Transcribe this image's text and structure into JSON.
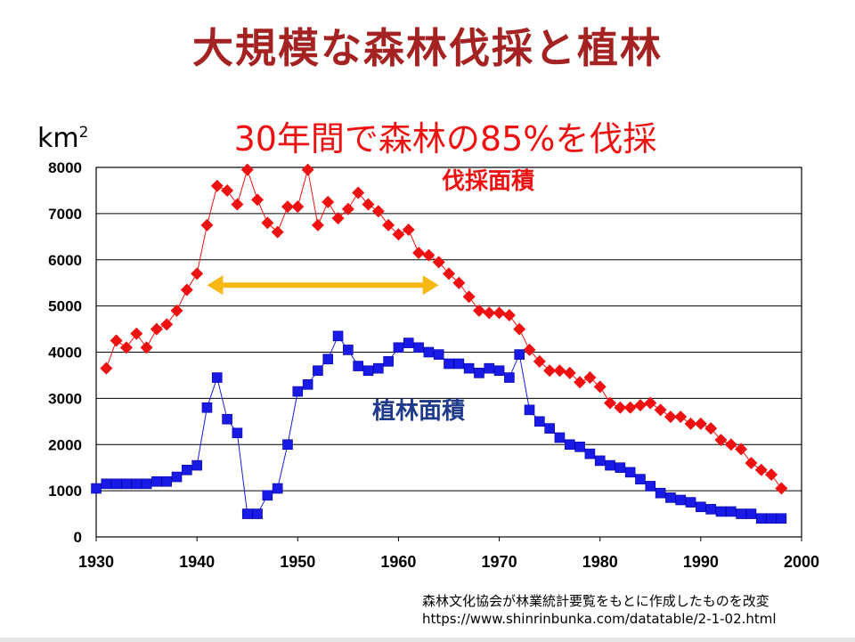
{
  "title": "大規模な森林伐採と植林",
  "subtitle": "30年間で森林の85%を伐採",
  "unit_base": "km",
  "unit_sup": "2",
  "source_line1": "森林文化協会が林業統計要覧をもとに作成したものを改変",
  "source_line2": "https://www.shinrinbunka.com/datatable/2-1-02.html",
  "colors": {
    "title": "#a52222",
    "subtitle": "#ee1111",
    "felling": "#ee1111",
    "planting": "#1a1ae6",
    "planting_label": "#1f3a8a",
    "arrow": "#f7b814"
  },
  "chart_data": {
    "type": "line",
    "xlim": [
      1930,
      2000
    ],
    "ylim": [
      0,
      8000
    ],
    "x_ticks": [
      1930,
      1940,
      1950,
      1960,
      1970,
      1980,
      1990,
      2000
    ],
    "y_ticks": [
      0,
      1000,
      2000,
      3000,
      4000,
      5000,
      6000,
      7000,
      8000
    ],
    "grid": "horizontal",
    "annotation": {
      "type": "double-arrow",
      "from": 1941,
      "to": 1964,
      "y": 5450
    },
    "series": [
      {
        "name": "伐採面積",
        "marker": "diamond",
        "color": "#ee1111",
        "x": [
          1931,
          1932,
          1933,
          1934,
          1935,
          1936,
          1937,
          1938,
          1939,
          1940,
          1941,
          1942,
          1943,
          1944,
          1945,
          1946,
          1947,
          1948,
          1949,
          1950,
          1951,
          1952,
          1953,
          1954,
          1955,
          1956,
          1957,
          1958,
          1959,
          1960,
          1961,
          1962,
          1963,
          1964,
          1965,
          1966,
          1967,
          1968,
          1969,
          1970,
          1971,
          1972,
          1973,
          1974,
          1975,
          1976,
          1977,
          1978,
          1979,
          1980,
          1981,
          1982,
          1983,
          1984,
          1985,
          1986,
          1987,
          1988,
          1989,
          1990,
          1991,
          1992,
          1993,
          1994,
          1995,
          1996,
          1997,
          1998
        ],
        "y": [
          3650,
          4250,
          4100,
          4400,
          4100,
          4500,
          4600,
          4900,
          5350,
          5700,
          6750,
          7600,
          7500,
          7200,
          7950,
          7300,
          6800,
          6600,
          7150,
          7150,
          7950,
          6750,
          7250,
          6900,
          7100,
          7450,
          7200,
          7050,
          6750,
          6550,
          6650,
          6150,
          6100,
          5950,
          5700,
          5500,
          5200,
          4900,
          4850,
          4850,
          4800,
          4500,
          4050,
          3800,
          3600,
          3600,
          3550,
          3350,
          3450,
          3250,
          2900,
          2800,
          2800,
          2850,
          2900,
          2750,
          2600,
          2600,
          2450,
          2450,
          2350,
          2100,
          2000,
          1900,
          1600,
          1450,
          1350,
          1050
        ]
      },
      {
        "name": "植林面積",
        "marker": "square",
        "color": "#1a1ae6",
        "x": [
          1930,
          1931,
          1932,
          1933,
          1934,
          1935,
          1936,
          1937,
          1938,
          1939,
          1940,
          1941,
          1942,
          1943,
          1944,
          1945,
          1946,
          1947,
          1948,
          1949,
          1950,
          1951,
          1952,
          1953,
          1954,
          1955,
          1956,
          1957,
          1958,
          1959,
          1960,
          1961,
          1962,
          1963,
          1964,
          1965,
          1966,
          1967,
          1968,
          1969,
          1970,
          1971,
          1972,
          1973,
          1974,
          1975,
          1976,
          1977,
          1978,
          1979,
          1980,
          1981,
          1982,
          1983,
          1984,
          1985,
          1986,
          1987,
          1988,
          1989,
          1990,
          1991,
          1992,
          1993,
          1994,
          1995,
          1996,
          1997,
          1998
        ],
        "y": [
          1050,
          1150,
          1150,
          1150,
          1150,
          1150,
          1200,
          1200,
          1300,
          1450,
          1550,
          2800,
          3450,
          2550,
          2250,
          500,
          500,
          900,
          1050,
          2000,
          3150,
          3300,
          3600,
          3850,
          4350,
          4050,
          3700,
          3600,
          3650,
          3800,
          4100,
          4200,
          4100,
          4000,
          3950,
          3750,
          3750,
          3650,
          3550,
          3650,
          3600,
          3450,
          3950,
          2750,
          2500,
          2350,
          2150,
          2000,
          1950,
          1800,
          1650,
          1550,
          1500,
          1400,
          1250,
          1100,
          950,
          850,
          800,
          750,
          650,
          600,
          550,
          550,
          500,
          500,
          400,
          400,
          400
        ]
      }
    ]
  }
}
